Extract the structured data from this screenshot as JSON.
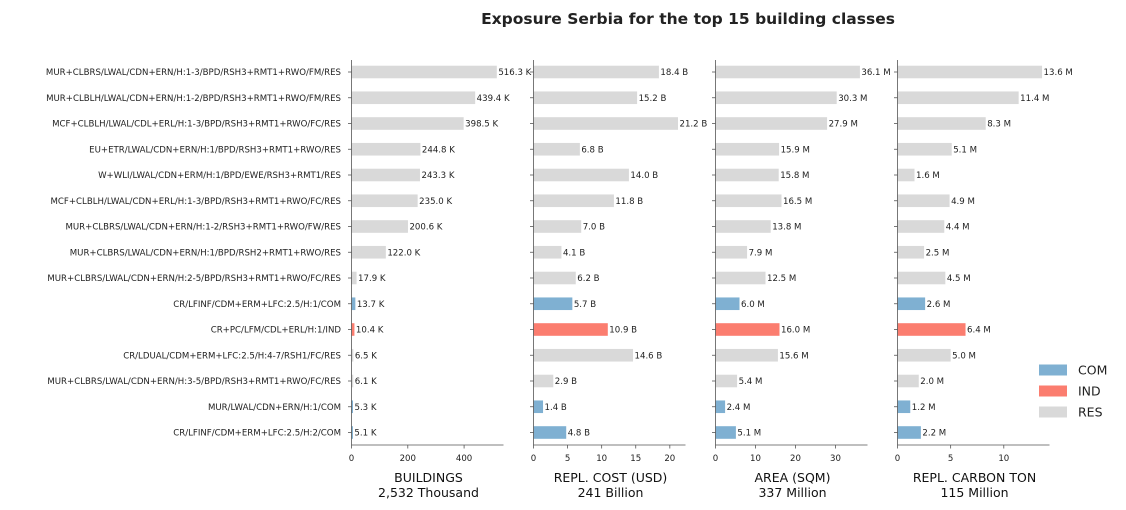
{
  "chart_data": {
    "type": "bar",
    "orientation": "horizontal",
    "title": "Exposure Serbia for the top 15 building classes",
    "categories": [
      "MUR+CLBRS/LWAL/CDN+ERN/H:1-3/BPD/RSH3+RMT1+RWO/FM/RES",
      "MUR+CLBLH/LWAL/CDN+ERN/H:1-2/BPD/RSH3+RMT1+RWO/FM/RES",
      "MCF+CLBLH/LWAL/CDL+ERL/H:1-3/BPD/RSH3+RMT1+RWO/FC/RES",
      "EU+ETR/LWAL/CDN+ERN/H:1/BPD/RSH3+RMT1+RWO/RES",
      "W+WLI/LWAL/CDN+ERM/H:1/BPD/EWE/RSH3+RMT1/RES",
      "MCF+CLBLH/LWAL/CDN+ERL/H:1-3/BPD/RSH3+RMT1+RWO/FC/RES",
      "MUR+CLBRS/LWAL/CDN+ERN/H:1-2/RSH3+RMT1+RWO/FW/RES",
      "MUR+CLBRS/LWAL/CDN+ERN/H:1/BPD/RSH2+RMT1+RWO/RES",
      "MUR+CLBRS/LWAL/CDN+ERN/H:2-5/BPD/RSH3+RMT1+RWO/FC/RES",
      "CR/LFINF/CDM+ERM+LFC:2.5/H:1/COM",
      "CR+PC/LFM/CDL+ERL/H:1/IND",
      "CR/LDUAL/CDM+ERM+LFC:2.5/H:4-7/RSH1/FC/RES",
      "MUR+CLBRS/LWAL/CDN+ERN/H:3-5/BPD/RSH3+RMT1+RWO/FC/RES",
      "MUR/LWAL/CDN+ERN/H:1/COM",
      "CR/LFINF/CDM+ERM+LFC:2.5/H:2/COM"
    ],
    "occupancy": [
      "RES",
      "RES",
      "RES",
      "RES",
      "RES",
      "RES",
      "RES",
      "RES",
      "RES",
      "COM",
      "IND",
      "RES",
      "RES",
      "COM",
      "COM"
    ],
    "colors": {
      "COM": "#7fb0d2",
      "IND": "#fb7d6f",
      "RES": "#d9d9d9"
    },
    "legend": {
      "position": "right",
      "entries": [
        "COM",
        "IND",
        "RES"
      ]
    },
    "grid": false,
    "panels": [
      {
        "xlabel": "BUILDINGS",
        "total": "2,532 Thousand",
        "xlim": [
          0,
          540
        ],
        "ticks": [
          0,
          200,
          400
        ],
        "values": [
          516.3,
          439.4,
          398.5,
          244.8,
          243.3,
          235.0,
          200.6,
          122.0,
          17.9,
          13.7,
          10.4,
          6.5,
          6.1,
          5.3,
          5.1
        ],
        "labels": [
          "516.3 K",
          "439.4 K",
          "398.5 K",
          "244.8 K",
          "243.3 K",
          "235.0 K",
          "200.6 K",
          "122.0 K",
          "17.9 K",
          "13.7 K",
          "10.4 K",
          "6.5 K",
          "6.1 K",
          "5.3 K",
          "5.1 K"
        ]
      },
      {
        "xlabel": "REPL. COST (USD)",
        "total": "241 Billion",
        "xlim": [
          0,
          22.3
        ],
        "ticks": [
          0,
          5,
          10,
          15,
          20
        ],
        "values": [
          18.4,
          15.2,
          21.2,
          6.8,
          14.0,
          11.8,
          7.0,
          4.1,
          6.2,
          5.7,
          10.9,
          14.6,
          2.9,
          1.4,
          4.8
        ],
        "labels": [
          "18.4 B",
          "15.2 B",
          "21.2 B",
          "6.8 B",
          "14.0 B",
          "11.8 B",
          "7.0 B",
          "4.1 B",
          "6.2 B",
          "5.7 B",
          "10.9 B",
          "14.6 B",
          "2.9 B",
          "1.4 B",
          "4.8 B"
        ]
      },
      {
        "xlabel": "AREA (SQM)",
        "total": "337 Million",
        "xlim": [
          0,
          38
        ],
        "ticks": [
          0,
          10,
          20,
          30
        ],
        "values": [
          36.1,
          30.3,
          27.9,
          15.9,
          15.8,
          16.5,
          13.8,
          7.9,
          12.5,
          6.0,
          16.0,
          15.6,
          5.4,
          2.4,
          5.1
        ],
        "labels": [
          "36.1 M",
          "30.3 M",
          "27.9 M",
          "15.9 M",
          "15.8 M",
          "16.5 M",
          "13.8 M",
          "7.9 M",
          "12.5 M",
          "6.0 M",
          "16.0 M",
          "15.6 M",
          "5.4 M",
          "2.4 M",
          "5.1 M"
        ]
      },
      {
        "xlabel": "REPL. CARBON TON",
        "total": "115 Million",
        "xlim": [
          0,
          14.3
        ],
        "ticks": [
          0,
          5,
          10
        ],
        "values": [
          13.6,
          11.4,
          8.3,
          5.1,
          1.6,
          4.9,
          4.4,
          2.5,
          4.5,
          2.6,
          6.4,
          5.0,
          2.0,
          1.2,
          2.2
        ],
        "labels": [
          "13.6 M",
          "11.4 M",
          "8.3 M",
          "5.1 M",
          "1.6 M",
          "4.9 M",
          "4.4 M",
          "2.5 M",
          "4.5 M",
          "2.6 M",
          "6.4 M",
          "5.0 M",
          "2.0 M",
          "1.2 M",
          "2.2 M"
        ]
      }
    ]
  }
}
